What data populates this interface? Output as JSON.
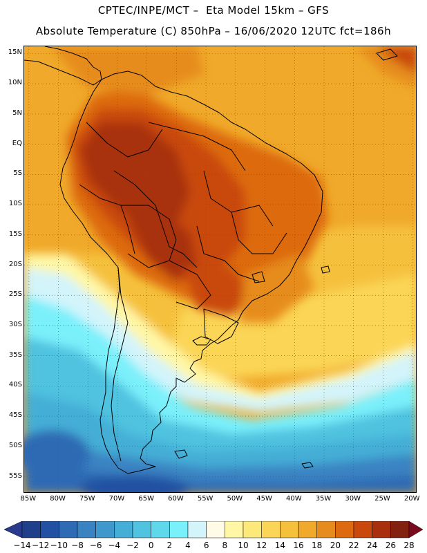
{
  "header": {
    "title_line1": "CPTEC/INPE/MCT –  Eta Model 15km – GFS",
    "title_line2": "Absolute Temperature (C) 850hPa – 16/06/2020 12UTC fct=186h"
  },
  "map": {
    "lat_labels": [
      "15N",
      "10N",
      "5N",
      "EQ",
      "5S",
      "10S",
      "15S",
      "20S",
      "25S",
      "30S",
      "35S",
      "40S",
      "45S",
      "50S",
      "55S"
    ],
    "lon_labels": [
      "85W",
      "80W",
      "75W",
      "70W",
      "65W",
      "60W",
      "55W",
      "50W",
      "45W",
      "40W",
      "35W",
      "30W",
      "25W",
      "20W"
    ],
    "extent": {
      "lon_min": -85.8,
      "lon_max": -19.2,
      "lat_min": -57.8,
      "lat_max": 16.2
    }
  },
  "legend": {
    "labels": [
      "-14",
      "-12",
      "-10",
      "-8",
      "-6",
      "-4",
      "-2",
      "0",
      "2",
      "4",
      "6",
      "8",
      "10",
      "12",
      "14",
      "16",
      "18",
      "20",
      "22",
      "24",
      "26",
      "28"
    ],
    "colors": [
      "#1f3f8a",
      "#2251a3",
      "#2e6bb4",
      "#3a83c2",
      "#3f98cc",
      "#45aed6",
      "#4fc3e0",
      "#5fd8ec",
      "#7af0fb",
      "#d3f4fb",
      "#fffbe6",
      "#fff7a6",
      "#fde87a",
      "#fbd557",
      "#f5c13d",
      "#f0a92a",
      "#e68c1e",
      "#dd6a10",
      "#c9480c",
      "#a8300c",
      "#842010"
    ],
    "under_color": "#2a3a8c",
    "over_color": "#7a0a1e"
  }
}
